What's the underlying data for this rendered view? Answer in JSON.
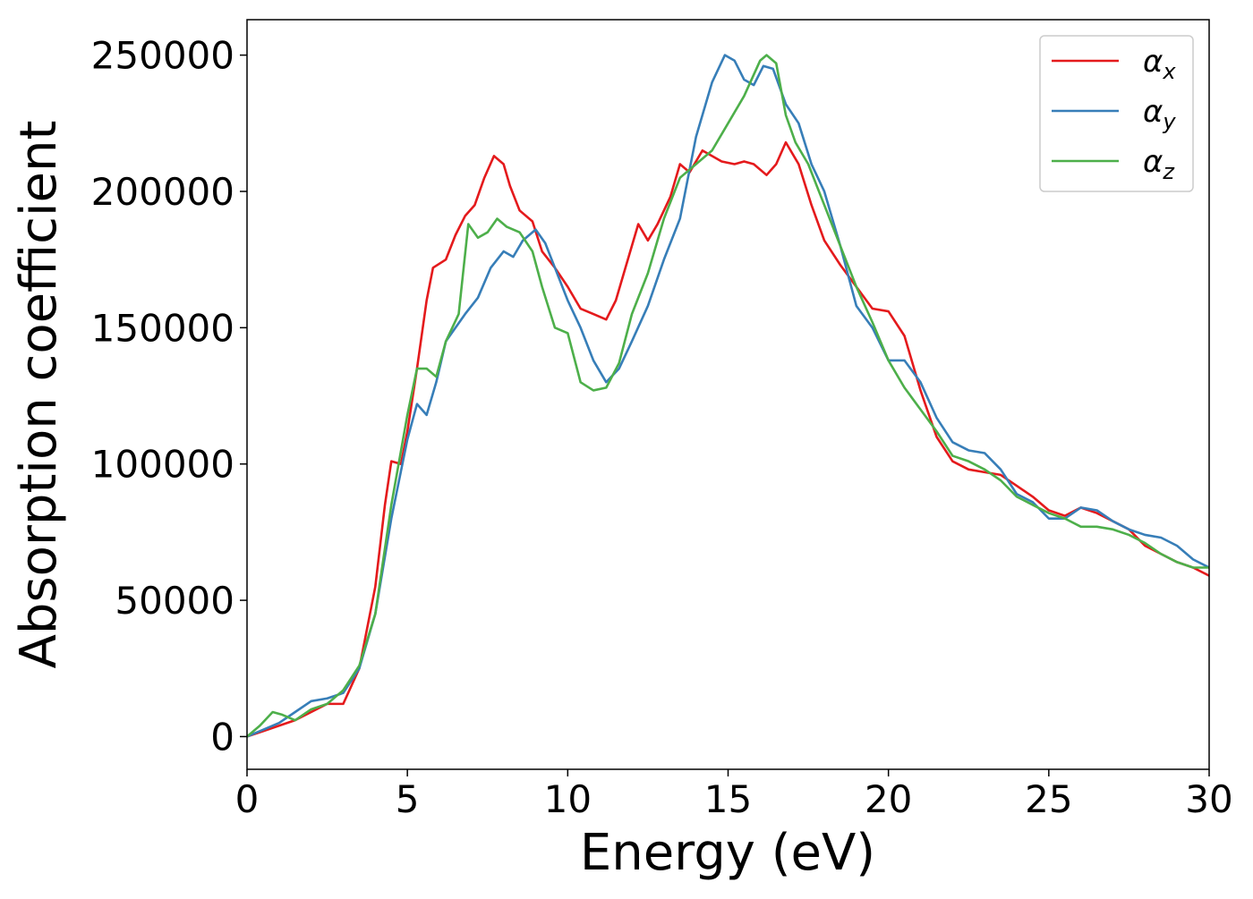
{
  "chart_data": {
    "type": "line",
    "xlabel": "Energy (eV)",
    "ylabel": "Absorption coefficient",
    "xlim": [
      0,
      30
    ],
    "ylim": [
      -12000,
      263000
    ],
    "xticks": [
      0,
      5,
      10,
      15,
      20,
      25,
      30
    ],
    "yticks": [
      0,
      50000,
      100000,
      150000,
      200000,
      250000
    ],
    "grid": false,
    "legend_position": "top-right",
    "series": [
      {
        "name": "α_x",
        "label_main": "α",
        "label_sub": "x",
        "color": "#e41a1c",
        "x": [
          0,
          0.5,
          1,
          1.5,
          2,
          2.5,
          3,
          3.5,
          4,
          4.3,
          4.5,
          4.8,
          5,
          5.3,
          5.6,
          5.8,
          6.2,
          6.5,
          6.8,
          7.1,
          7.4,
          7.7,
          8,
          8.2,
          8.5,
          8.9,
          9.2,
          9.6,
          10,
          10.4,
          10.8,
          11.2,
          11.5,
          11.8,
          12.2,
          12.5,
          12.8,
          13.2,
          13.5,
          13.8,
          14.2,
          14.5,
          14.8,
          15.2,
          15.5,
          15.8,
          16.2,
          16.5,
          16.8,
          17.2,
          17.6,
          18,
          18.5,
          19,
          19.5,
          20,
          20.5,
          21,
          21.5,
          22,
          22.5,
          23,
          23.5,
          24,
          24.5,
          25,
          25.5,
          26,
          26.5,
          27,
          27.5,
          28,
          28.5,
          29,
          29.5,
          30
        ],
        "y": [
          0,
          2000,
          4000,
          6000,
          9000,
          12000,
          12000,
          25000,
          55000,
          85000,
          101000,
          100000,
          112000,
          135000,
          160000,
          172000,
          175000,
          184000,
          191000,
          195000,
          205000,
          213000,
          210000,
          202000,
          193000,
          189000,
          178000,
          172000,
          165000,
          157000,
          155000,
          153000,
          160000,
          172000,
          188000,
          182000,
          188000,
          198000,
          210000,
          207000,
          215000,
          213000,
          211000,
          210000,
          211000,
          210000,
          206000,
          210000,
          218000,
          210000,
          195000,
          182000,
          173000,
          165000,
          157000,
          156000,
          147000,
          127000,
          110000,
          101000,
          98000,
          97000,
          96000,
          92000,
          88000,
          83000,
          81000,
          84000,
          82000,
          79000,
          76000,
          70000,
          67000,
          64000,
          62000,
          59000
        ]
      },
      {
        "name": "α_y",
        "label_main": "α",
        "label_sub": "y",
        "color": "#377eb8",
        "x": [
          0,
          0.5,
          1,
          1.5,
          2,
          2.5,
          3,
          3.5,
          4,
          4.5,
          5,
          5.3,
          5.6,
          5.9,
          6.2,
          6.5,
          6.8,
          7.2,
          7.6,
          8,
          8.3,
          8.6,
          9,
          9.3,
          9.6,
          10,
          10.4,
          10.8,
          11.2,
          11.6,
          12,
          12.5,
          13,
          13.5,
          14,
          14.5,
          14.9,
          15.2,
          15.5,
          15.8,
          16.1,
          16.4,
          16.8,
          17.2,
          17.6,
          18,
          18.5,
          19,
          19.5,
          20,
          20.5,
          21,
          21.5,
          22,
          22.5,
          23,
          23.5,
          24,
          24.5,
          25,
          25.5,
          26,
          26.5,
          27,
          27.5,
          28,
          28.5,
          29,
          29.5,
          30
        ],
        "y": [
          0,
          2500,
          5000,
          9000,
          13000,
          14000,
          16000,
          25000,
          45000,
          80000,
          109000,
          122000,
          118000,
          130000,
          145000,
          150000,
          155000,
          161000,
          172000,
          178000,
          176000,
          182000,
          186000,
          181000,
          172000,
          160000,
          150000,
          138000,
          130000,
          135000,
          145000,
          158000,
          175000,
          190000,
          220000,
          240000,
          250000,
          248000,
          241000,
          239000,
          246000,
          245000,
          232000,
          225000,
          210000,
          200000,
          180000,
          158000,
          150000,
          138000,
          138000,
          130000,
          117000,
          108000,
          105000,
          104000,
          98000,
          89000,
          86000,
          80000,
          80000,
          84000,
          83000,
          79000,
          76000,
          74000,
          73000,
          70000,
          65000,
          62000
        ]
      },
      {
        "name": "α_z",
        "label_main": "α",
        "label_sub": "z",
        "color": "#4daf4a",
        "x": [
          0,
          0.4,
          0.8,
          1.1,
          1.5,
          2,
          2.5,
          3,
          3.5,
          4,
          4.5,
          5,
          5.3,
          5.6,
          5.9,
          6.2,
          6.6,
          6.9,
          7.2,
          7.5,
          7.8,
          8.1,
          8.5,
          8.9,
          9.2,
          9.6,
          10,
          10.4,
          10.8,
          11.2,
          11.6,
          12,
          12.5,
          13,
          13.5,
          14,
          14.5,
          15,
          15.5,
          16,
          16.2,
          16.5,
          16.8,
          17.1,
          17.5,
          18,
          18.5,
          19,
          19.5,
          20,
          20.5,
          21,
          21.5,
          22,
          22.5,
          23,
          23.5,
          24,
          24.5,
          25,
          25.5,
          26,
          26.5,
          27,
          27.5,
          28,
          28.5,
          29,
          29.5,
          30
        ],
        "y": [
          0,
          4000,
          9000,
          8000,
          6000,
          10000,
          12000,
          17000,
          26000,
          45000,
          85000,
          118000,
          135000,
          135000,
          132000,
          145000,
          155000,
          188000,
          183000,
          185000,
          190000,
          187000,
          185000,
          178000,
          165000,
          150000,
          148000,
          130000,
          127000,
          128000,
          137000,
          155000,
          170000,
          190000,
          205000,
          210000,
          215000,
          225000,
          235000,
          248000,
          250000,
          247000,
          228000,
          218000,
          210000,
          195000,
          180000,
          165000,
          152000,
          138000,
          128000,
          120000,
          112000,
          103000,
          101000,
          98000,
          94000,
          88000,
          85000,
          82000,
          80000,
          77000,
          77000,
          76000,
          74000,
          71000,
          67000,
          64000,
          62000,
          62000
        ]
      }
    ]
  }
}
